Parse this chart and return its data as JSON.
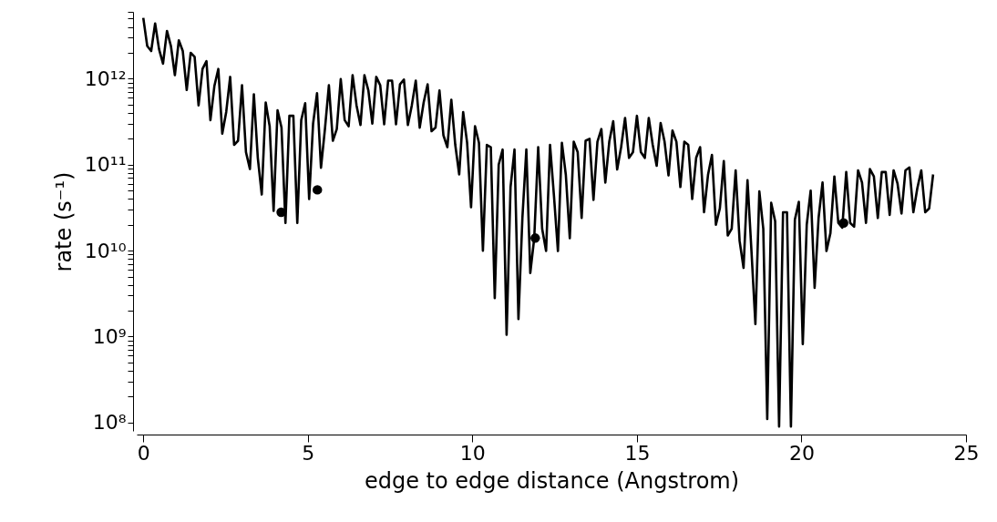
{
  "chart_data": {
    "type": "line",
    "xlabel": "edge to edge distance (Angstrom)",
    "ylabel": "rate (s⁻¹)",
    "log": "y",
    "grid": false,
    "line_style": "solid",
    "xlim": [
      -0.2,
      25
    ],
    "xticks": [
      0,
      5,
      10,
      15,
      20,
      25
    ],
    "ylim": [
      80000000.0,
      6000000000000.0
    ],
    "yticks": [
      {
        "value": 100000000.0,
        "label": "10⁸"
      },
      {
        "value": 200000000.0,
        "label": null
      },
      {
        "value": 300000000.0,
        "label": null
      },
      {
        "value": 400000000.0,
        "label": null
      },
      {
        "value": 500000000.0,
        "label": null
      },
      {
        "value": 600000000.0,
        "label": null
      },
      {
        "value": 700000000.0,
        "label": null
      },
      {
        "value": 800000000.0,
        "label": null
      },
      {
        "value": 900000000.0,
        "label": null
      },
      {
        "value": 1000000000.0,
        "label": "10⁹"
      },
      {
        "value": 2000000000.0,
        "label": null
      },
      {
        "value": 3000000000.0,
        "label": null
      },
      {
        "value": 4000000000.0,
        "label": null
      },
      {
        "value": 5000000000.0,
        "label": null
      },
      {
        "value": 6000000000.0,
        "label": null
      },
      {
        "value": 7000000000.0,
        "label": null
      },
      {
        "value": 8000000000.0,
        "label": null
      },
      {
        "value": 9000000000.0,
        "label": null
      },
      {
        "value": 10000000000.0,
        "label": "10¹⁰"
      },
      {
        "value": 20000000000.0,
        "label": null
      },
      {
        "value": 30000000000.0,
        "label": null
      },
      {
        "value": 40000000000.0,
        "label": null
      },
      {
        "value": 50000000000.0,
        "label": null
      },
      {
        "value": 60000000000.0,
        "label": null
      },
      {
        "value": 70000000000.0,
        "label": null
      },
      {
        "value": 80000000000.0,
        "label": null
      },
      {
        "value": 90000000000.0,
        "label": null
      },
      {
        "value": 100000000000.0,
        "label": "10¹¹"
      },
      {
        "value": 200000000000.0,
        "label": null
      },
      {
        "value": 300000000000.0,
        "label": null
      },
      {
        "value": 400000000000.0,
        "label": null
      },
      {
        "value": 500000000000.0,
        "label": null
      },
      {
        "value": 600000000000.0,
        "label": null
      },
      {
        "value": 700000000000.0,
        "label": null
      },
      {
        "value": 800000000000.0,
        "label": null
      },
      {
        "value": 900000000000.0,
        "label": null
      },
      {
        "value": 1000000000000.0,
        "label": "10¹²"
      },
      {
        "value": 2000000000000.0,
        "label": null
      },
      {
        "value": 3000000000000.0,
        "label": null
      },
      {
        "value": 4000000000000.0,
        "label": null
      },
      {
        "value": 5000000000000.0,
        "label": null
      },
      {
        "value": 6000000000000.0,
        "label": null
      }
    ],
    "series": [
      {
        "type": "line",
        "color": "#000000",
        "x": [
          0,
          0.12,
          0.24,
          0.36,
          0.48,
          0.6,
          0.72,
          0.84,
          0.96,
          1.08,
          1.2,
          1.32,
          1.44,
          1.56,
          1.68,
          1.8,
          1.92,
          2.04,
          2.16,
          2.28,
          2.4,
          2.52,
          2.64,
          2.76,
          2.88,
          3.0,
          3.12,
          3.24,
          3.36,
          3.48,
          3.6,
          3.72,
          3.84,
          3.96,
          4.08,
          4.2,
          4.32,
          4.44,
          4.56,
          4.68,
          4.8,
          4.92,
          5.04,
          5.16,
          5.28,
          5.4,
          5.52,
          5.64,
          5.76,
          5.88,
          6.0,
          6.12,
          6.24,
          6.36,
          6.48,
          6.6,
          6.72,
          6.84,
          6.96,
          7.08,
          7.2,
          7.32,
          7.44,
          7.56,
          7.68,
          7.8,
          7.92,
          8.04,
          8.16,
          8.28,
          8.4,
          8.52,
          8.64,
          8.76,
          8.88,
          9.0,
          9.12,
          9.24,
          9.36,
          9.48,
          9.6,
          9.72,
          9.84,
          9.96,
          10.08,
          10.2,
          10.32,
          10.44,
          10.56,
          10.68,
          10.8,
          10.92,
          11.04,
          11.16,
          11.28,
          11.4,
          11.52,
          11.64,
          11.76,
          11.88,
          12.0,
          12.12,
          12.24,
          12.36,
          12.48,
          12.6,
          12.72,
          12.84,
          12.96,
          13.08,
          13.2,
          13.32,
          13.44,
          13.56,
          13.68,
          13.8,
          13.92,
          14.04,
          14.16,
          14.28,
          14.4,
          14.52,
          14.64,
          14.76,
          14.88,
          15.0,
          15.12,
          15.24,
          15.36,
          15.48,
          15.6,
          15.72,
          15.84,
          15.96,
          16.08,
          16.2,
          16.32,
          16.44,
          16.56,
          16.68,
          16.8,
          16.92,
          17.04,
          17.16,
          17.28,
          17.4,
          17.52,
          17.64,
          17.76,
          17.88,
          18.0,
          18.12,
          18.24,
          18.36,
          18.48,
          18.6,
          18.72,
          18.84,
          18.96,
          19.08,
          19.2,
          19.32,
          19.44,
          19.56,
          19.68,
          19.8,
          19.92,
          20.04,
          20.16,
          20.28,
          20.4,
          20.52,
          20.64,
          20.76,
          20.88,
          21.0,
          21.12,
          21.24,
          21.36,
          21.48,
          21.6,
          21.72,
          21.84,
          21.96,
          22.08,
          22.2,
          22.32,
          22.44,
          22.56,
          22.68,
          22.8,
          22.92,
          23.04,
          23.16,
          23.28,
          23.4,
          23.52,
          23.64,
          23.76,
          23.88,
          24.0
        ],
        "values": [
          5100000000000.0,
          2400000000000.0,
          2100000000000.0,
          4400000000000.0,
          2200000000000.0,
          1500000000000.0,
          3600000000000.0,
          2400000000000.0,
          1100000000000.0,
          2800000000000.0,
          2100000000000.0,
          740000000000.0,
          2000000000000.0,
          1800000000000.0,
          490000000000.0,
          1300000000000.0,
          1600000000000.0,
          330000000000.0,
          820000000000.0,
          1300000000000.0,
          230000000000.0,
          410000000000.0,
          1050000000000.0,
          170000000000.0,
          190000000000.0,
          840000000000.0,
          140000000000.0,
          89000000000.0,
          660000000000.0,
          120000000000.0,
          45000000000.0,
          530000000000.0,
          280000000000.0,
          29000000000.0,
          430000000000.0,
          270000000000.0,
          21000000000.0,
          370000000000.0,
          370000000000.0,
          21000000000.0,
          330000000000.0,
          520000000000.0,
          40000000000.0,
          300000000000.0,
          680000000000.0,
          92000000000.0,
          260000000000.0,
          840000000000.0,
          190000000000.0,
          260000000000.0,
          990000000000.0,
          330000000000.0,
          280000000000.0,
          1100000000000.0,
          490000000000.0,
          290000000000.0,
          1100000000000.0,
          730000000000.0,
          300000000000.0,
          1050000000000.0,
          840000000000.0,
          295000000000.0,
          950000000000.0,
          950000000000.0,
          295000000000.0,
          860000000000.0,
          980000000000.0,
          290000000000.0,
          490000000000.0,
          950000000000.0,
          270000000000.0,
          530000000000.0,
          860000000000.0,
          245000000000.0,
          270000000000.0,
          730000000000.0,
          220000000000.0,
          160000000000.0,
          570000000000.0,
          170000000000.0,
          77000000000.0,
          410000000000.0,
          180000000000.0,
          32000000000.0,
          280000000000.0,
          180000000000.0,
          10000000000.0,
          170000000000.0,
          160000000000.0,
          2800000000.0,
          100000000000.0,
          150000000000.0,
          1050000000.0,
          55000000000.0,
          150000000000.0,
          1600000000.0,
          24000000000.0,
          150000000000.0,
          5500000000.0,
          14000000000.0,
          160000000000.0,
          18000000000.0,
          9900000000.0,
          170000000000.0,
          43000000000.0,
          9900000000.0,
          180000000000.0,
          76000000000.0,
          14000000000.0,
          185000000000.0,
          140000000000.0,
          24000000000.0,
          190000000000.0,
          200000000000.0,
          39000000000.0,
          185000000000.0,
          260000000000.0,
          62000000000.0,
          185000000000.0,
          320000000000.0,
          88000000000.0,
          160000000000.0,
          350000000000.0,
          120000000000.0,
          140000000000.0,
          370000000000.0,
          140000000000.0,
          120000000000.0,
          350000000000.0,
          170000000000.0,
          97000000000.0,
          305000000000.0,
          185000000000.0,
          75000000000.0,
          250000000000.0,
          185000000000.0,
          55000000000.0,
          185000000000.0,
          170000000000.0,
          40000000000.0,
          120000000000.0,
          160000000000.0,
          28000000000.0,
          76000000000.0,
          130000000000.0,
          20000000000.0,
          31000000000.0,
          110000000000.0,
          15000000000.0,
          18000000000.0,
          86000000000.0,
          13000000000.0,
          6300000000.0,
          66000000000.0,
          10000000000.0,
          1400000000.0,
          49000000000.0,
          18000000000.0,
          110000000.0,
          36000000000.0,
          22000000000.0,
          90000000.0,
          28000000000.0,
          28000000000.0,
          90000000.0,
          23000000000.0,
          37000000000.0,
          820000000.0,
          20000000000.0,
          50000000000.0,
          3700000000.0,
          24000000000.0,
          62000000000.0,
          9900000000.0,
          16000000000.0,
          73000000000.0,
          21000000000.0,
          18500000000.0,
          82000000000.0,
          21000000000.0,
          19000000000.0,
          86000000000.0,
          62000000000.0,
          21000000000.0,
          89000000000.0,
          73000000000.0,
          24000000000.0,
          82000000000.0,
          82000000000.0,
          26000000000.0,
          86000000000.0,
          60000000000.0,
          27000000000.0,
          86000000000.0,
          93000000000.0,
          28000000000.0,
          53000000000.0,
          86000000000.0,
          28000000000.0,
          31000000000.0,
          77000000000.0
        ]
      },
      {
        "type": "scatter",
        "color": "#000000",
        "marker": "circle",
        "x": [
          4.19,
          5.29,
          11.91,
          21.28
        ],
        "values": [
          28000000000.0,
          51000000000.0,
          14000000000.0,
          21000000000.0
        ]
      }
    ]
  }
}
